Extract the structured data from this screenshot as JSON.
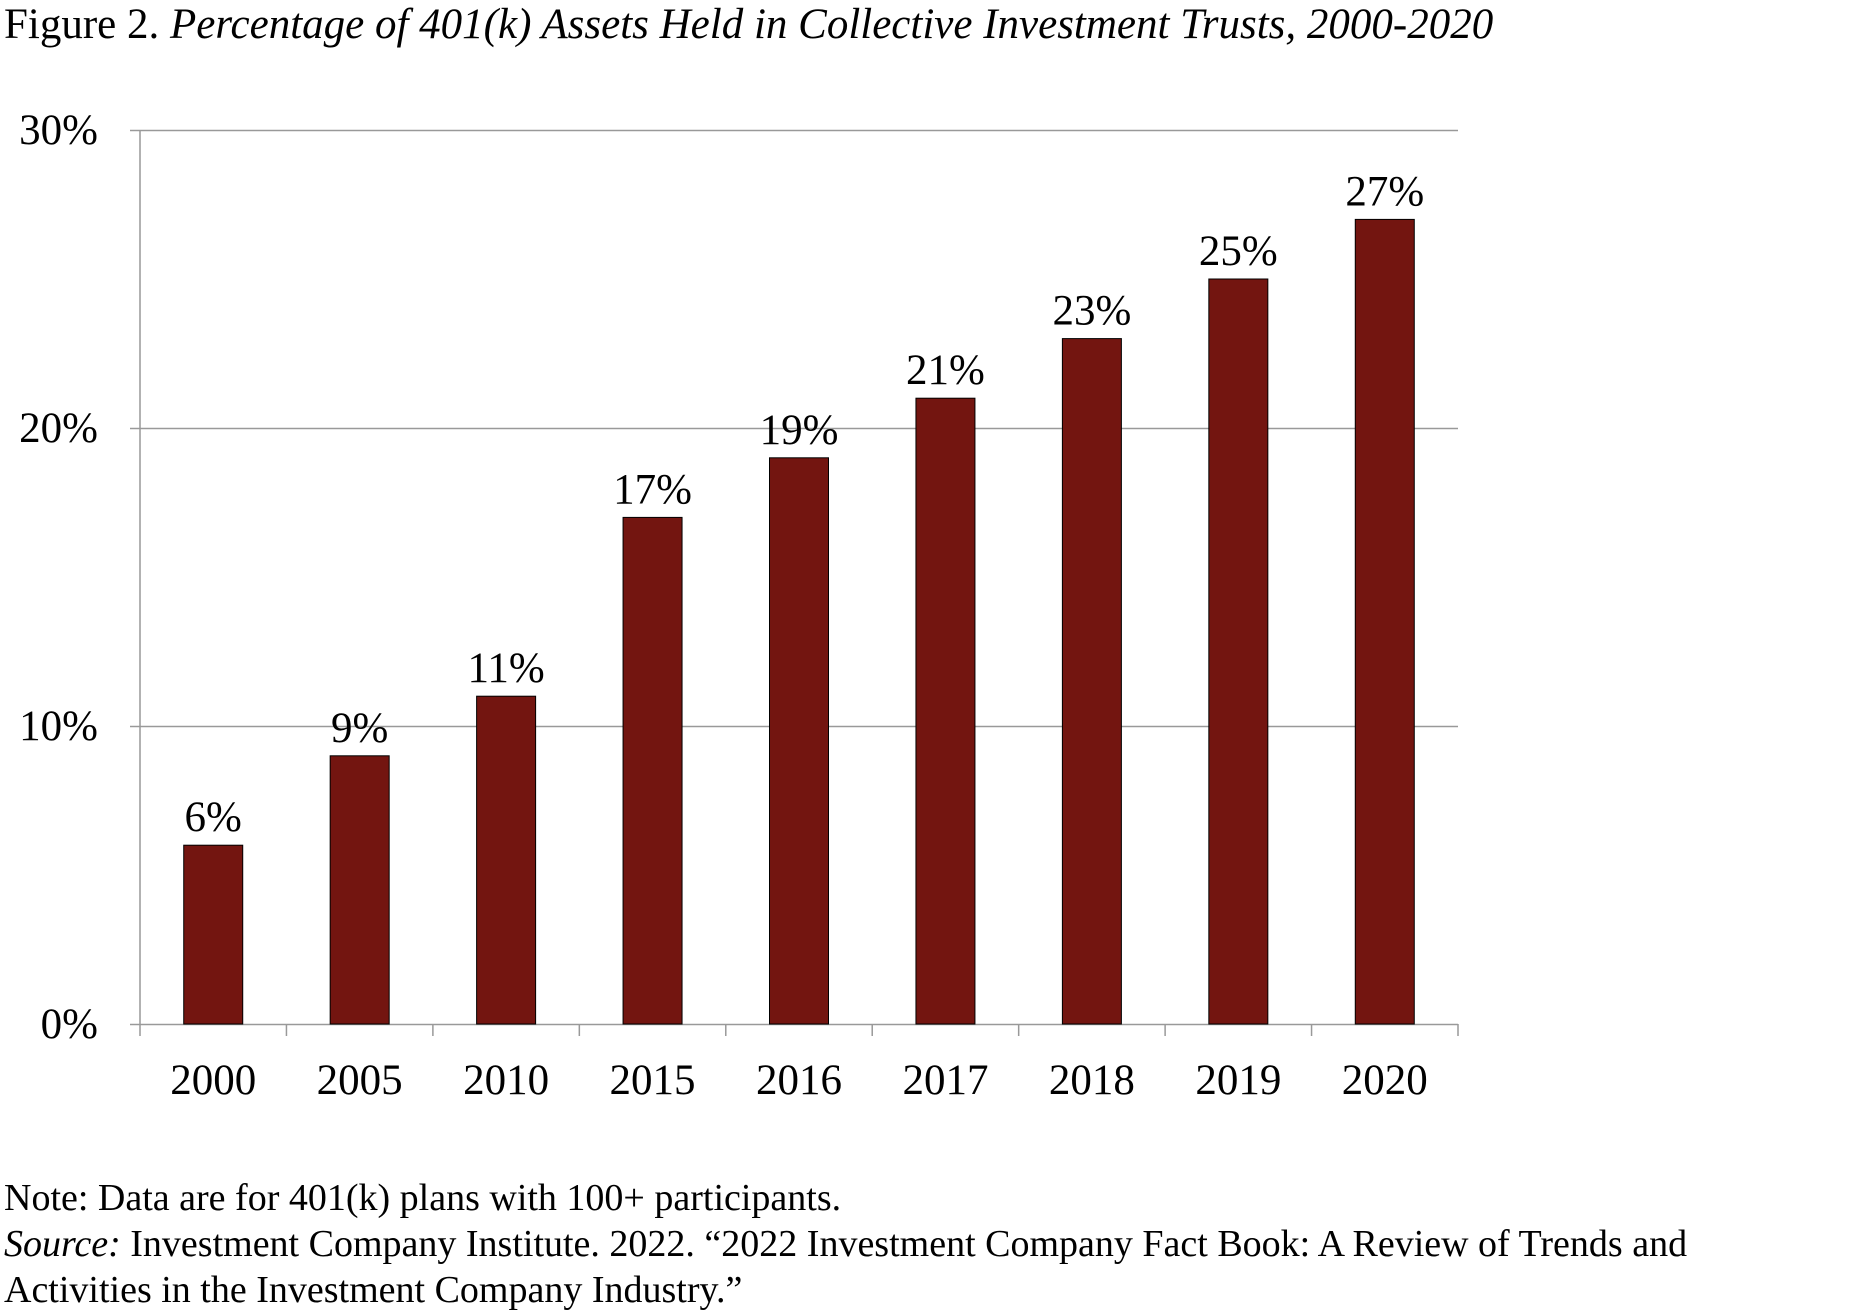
{
  "figure": {
    "label": "Figure 2.",
    "title": "Percentage of 401(k) Assets Held in Collective Investment Trusts, 2000-2020"
  },
  "chart_data": {
    "type": "bar",
    "title": "Percentage of 401(k) Assets Held in Collective Investment Trusts, 2000-2020",
    "categories": [
      "2000",
      "2005",
      "2010",
      "2015",
      "2016",
      "2017",
      "2018",
      "2019",
      "2020"
    ],
    "values": [
      6,
      9,
      11,
      17,
      19,
      21,
      23,
      25,
      27
    ],
    "data_labels": [
      "6%",
      "9%",
      "11%",
      "17%",
      "19%",
      "21%",
      "23%",
      "25%",
      "27%"
    ],
    "xlabel": "",
    "ylabel": "",
    "ylim": [
      0,
      30
    ],
    "yticks": [
      0,
      10,
      20,
      30
    ],
    "ytick_labels": [
      "0%",
      "10%",
      "20%",
      "30%"
    ],
    "grid": true,
    "bar_color": "#731510"
  },
  "notes": {
    "note": "Note: Data are for 401(k) plans with 100+ participants.",
    "source_label": "Source:",
    "source_text": " Investment Company Institute. 2022. “2022 Investment Company Fact Book: A Review of Trends and",
    "source_text_2": "Activities in the Investment Company Industry.”"
  }
}
